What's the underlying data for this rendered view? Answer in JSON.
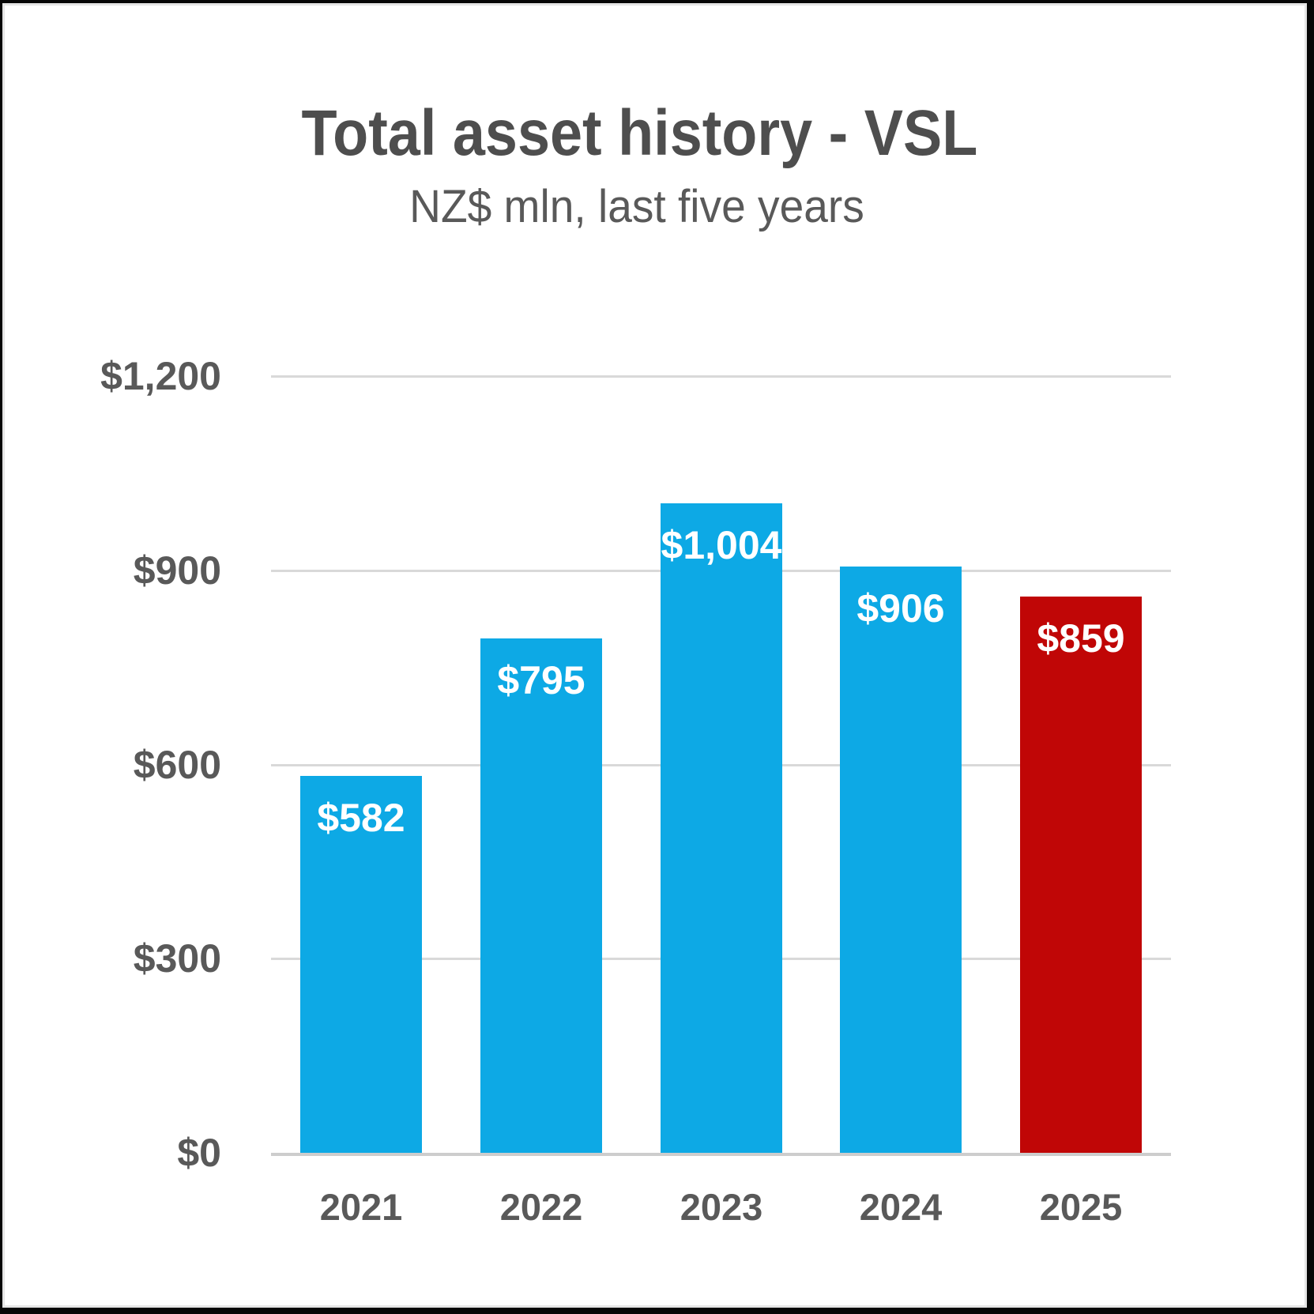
{
  "title": "Total asset history - VSL",
  "subtitle": "NZ$ mln, last five years",
  "colors": {
    "bar_default": "#0da9e5",
    "bar_highlight": "#c00606",
    "title_text": "#4e4e4e",
    "axis_text": "#595959",
    "value_label_text": "#ffffff",
    "gridline": "#d9d9d9",
    "axis_line": "#cdcdcd",
    "background": "#ffffff",
    "border": "#060606"
  },
  "chart_data": {
    "type": "bar",
    "title": "Total asset history - VSL",
    "subtitle": "NZ$ mln, last five years",
    "categories": [
      "2021",
      "2022",
      "2023",
      "2024",
      "2025"
    ],
    "values": [
      582,
      795,
      1004,
      906,
      859
    ],
    "value_labels": [
      "$582",
      "$795",
      "$1,004",
      "$906",
      "$859"
    ],
    "bar_colors": [
      "#0da9e5",
      "#0da9e5",
      "#0da9e5",
      "#0da9e5",
      "#c00606"
    ],
    "xlabel": "",
    "ylabel": "",
    "ylim": [
      0,
      1200
    ],
    "yticks": [
      0,
      300,
      600,
      900,
      1200
    ],
    "ytick_labels": [
      "$0",
      "$300",
      "$600",
      "$900",
      "$1,200"
    ],
    "grid": "horizontal",
    "legend": false
  }
}
